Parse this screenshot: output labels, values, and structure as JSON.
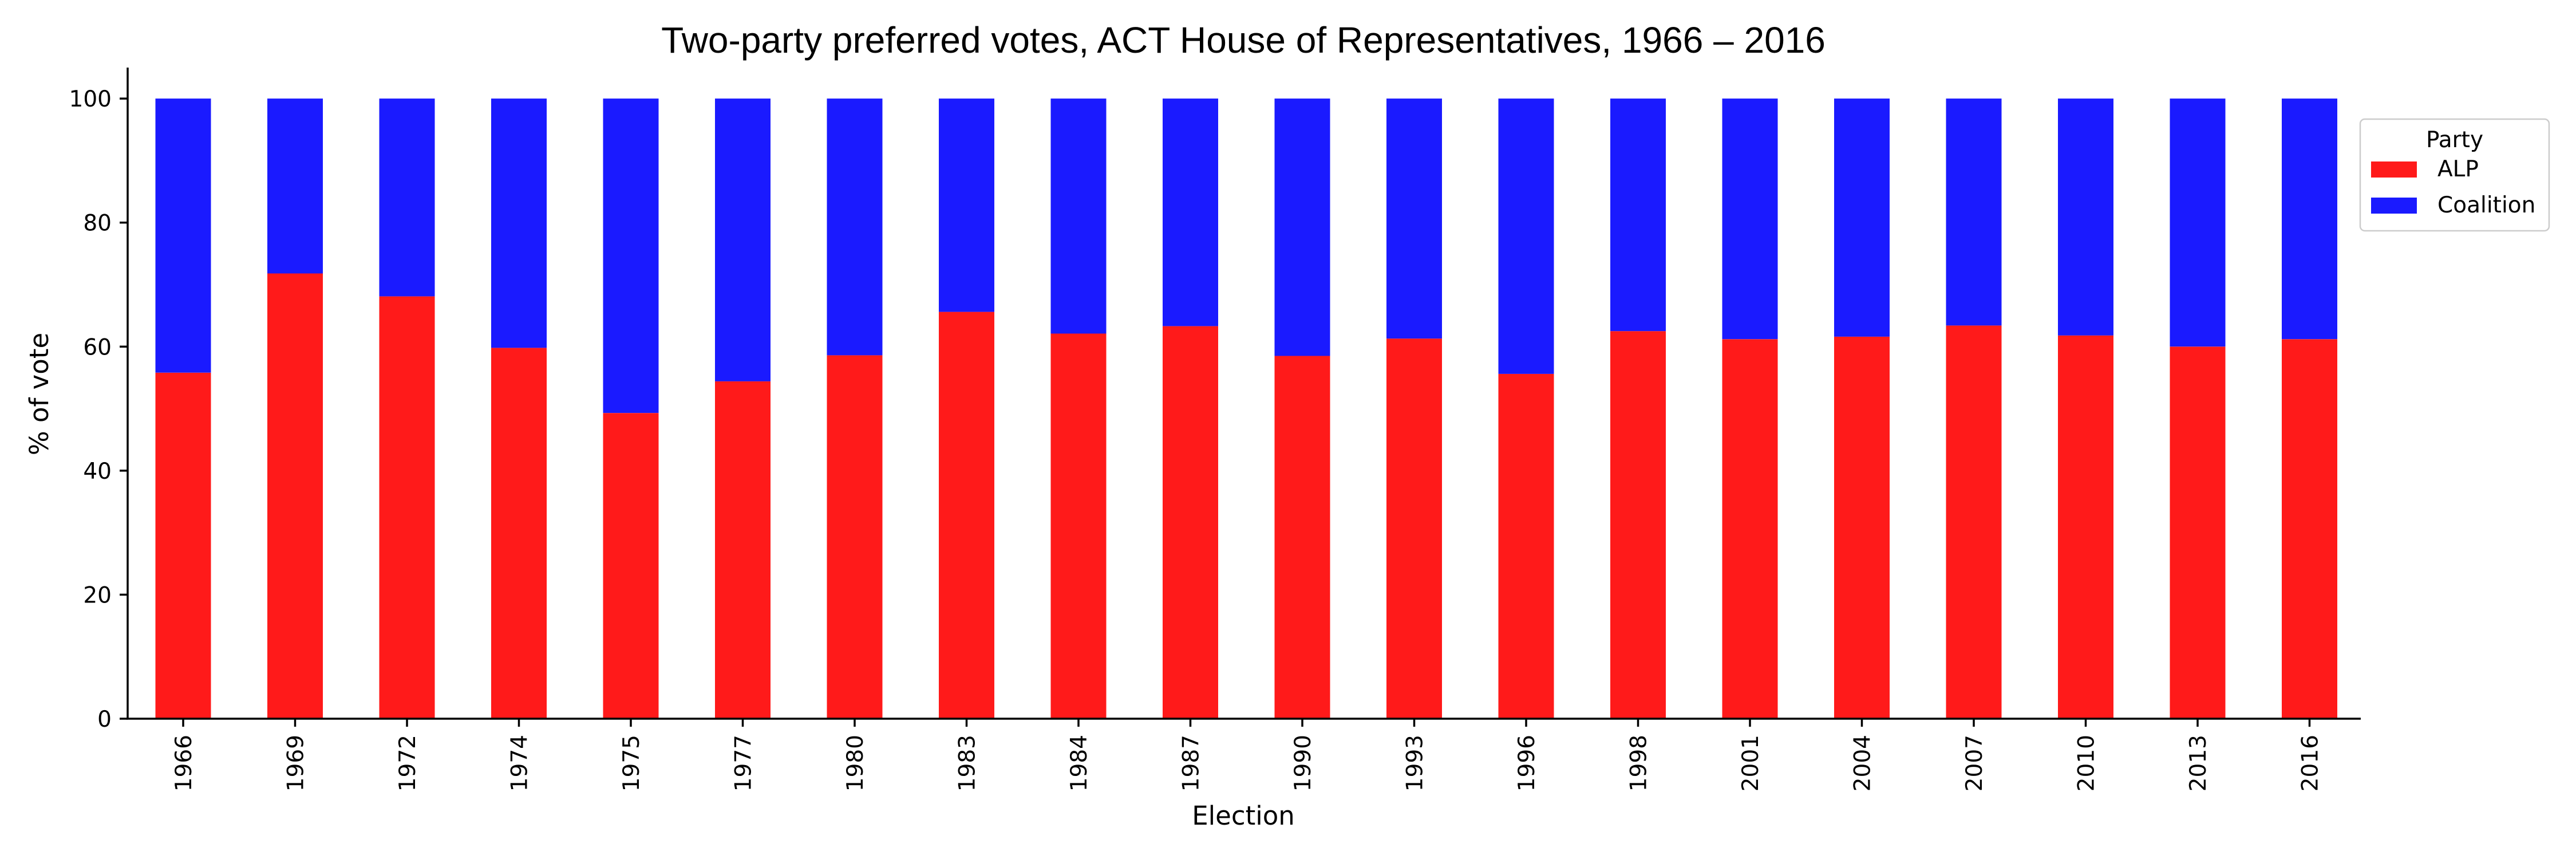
{
  "chart_data": {
    "type": "bar",
    "stacked": true,
    "orientation": "vertical",
    "title": "Two-party preferred votes, ACT House of Representatives, 1966 – 2016",
    "xlabel": "Election",
    "ylabel": "% of vote",
    "ylim": [
      0,
      105
    ],
    "yticks": [
      0,
      20,
      40,
      60,
      80,
      100
    ],
    "categories": [
      "1966",
      "1969",
      "1972",
      "1974",
      "1975",
      "1977",
      "1980",
      "1983",
      "1984",
      "1987",
      "1990",
      "1993",
      "1996",
      "1998",
      "2001",
      "2004",
      "2007",
      "2010",
      "2013",
      "2016"
    ],
    "series": [
      {
        "name": "ALP",
        "color": "#ff1a1a",
        "values": [
          55.8,
          71.8,
          68.1,
          59.8,
          49.3,
          54.4,
          58.6,
          65.6,
          62.1,
          63.3,
          58.5,
          61.3,
          55.6,
          62.5,
          61.2,
          61.6,
          63.4,
          61.8,
          60.0,
          61.2
        ]
      },
      {
        "name": "Coalition",
        "color": "#1a1aff",
        "values": [
          44.2,
          28.2,
          31.9,
          40.2,
          50.7,
          45.6,
          41.4,
          34.4,
          37.9,
          36.7,
          41.5,
          38.7,
          44.4,
          37.5,
          38.8,
          38.4,
          36.6,
          38.2,
          40.0,
          38.8
        ]
      }
    ],
    "legend": {
      "title": "Party",
      "placement": "outside-right-top"
    },
    "grid": false,
    "x_tick_rotation": -90
  }
}
